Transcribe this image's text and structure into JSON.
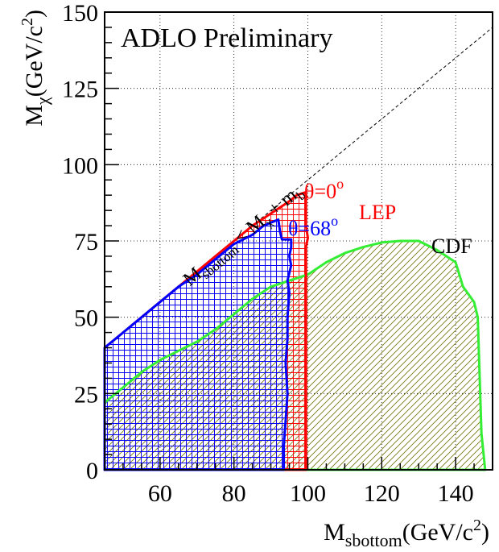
{
  "chart_data": {
    "type": "area",
    "title": "ADLO Preliminary",
    "xlabel": {
      "main": "M",
      "sub": "sbottom",
      "unit_open": "(GeV/c",
      "unit_sup": "2",
      "unit_close": ")"
    },
    "ylabel": {
      "main": "M",
      "sub": "χ",
      "unit_open": "(GeV/c",
      "unit_sup": "2",
      "unit_close": ")"
    },
    "xlim": [
      45,
      150
    ],
    "ylim": [
      0,
      150
    ],
    "x_ticks": [
      60,
      80,
      100,
      120,
      140
    ],
    "y_ticks": [
      0,
      25,
      50,
      75,
      100,
      125,
      150
    ],
    "grid": true,
    "kinematic_line": {
      "label": {
        "m1": "M",
        "s1": "sbottom",
        "lt": " < ",
        "m2": "M",
        "s2": "χ",
        "plus": " + m",
        "s3": "b"
      },
      "points": [
        [
          45,
          40
        ],
        [
          150,
          145
        ]
      ],
      "color": "#000000"
    },
    "series": [
      {
        "name": "CDF",
        "color": "#33ee33",
        "hatch_color": "#7a7a10",
        "hatch": "diagonal",
        "points": [
          [
            45,
            22
          ],
          [
            50,
            27
          ],
          [
            55,
            32
          ],
          [
            60,
            36
          ],
          [
            65,
            39
          ],
          [
            70,
            42
          ],
          [
            75,
            46
          ],
          [
            80,
            51
          ],
          [
            85,
            56
          ],
          [
            90,
            60
          ],
          [
            95,
            62
          ],
          [
            100,
            64
          ],
          [
            105,
            68
          ],
          [
            110,
            71
          ],
          [
            115,
            73
          ],
          [
            120,
            74.5
          ],
          [
            125,
            75
          ],
          [
            130,
            75
          ],
          [
            135,
            72
          ],
          [
            140,
            68
          ],
          [
            141,
            64
          ],
          [
            142,
            60
          ],
          [
            145,
            55
          ],
          [
            146,
            50
          ],
          [
            147,
            12
          ],
          [
            148,
            0
          ],
          [
            45,
            0
          ]
        ]
      },
      {
        "name": "LEP",
        "color": "#ff0000",
        "hatch": "grid",
        "annotation": {
          "theta": "θ=0",
          "sup": "o"
        },
        "points": [
          [
            45,
            40
          ],
          [
            50,
            45
          ],
          [
            55,
            50
          ],
          [
            60,
            55
          ],
          [
            65,
            60
          ],
          [
            70,
            65
          ],
          [
            75,
            70
          ],
          [
            80,
            75
          ],
          [
            85,
            80
          ],
          [
            90,
            84
          ],
          [
            95,
            88
          ],
          [
            97,
            90
          ],
          [
            99.5,
            91
          ],
          [
            99.5,
            80
          ],
          [
            100,
            76
          ],
          [
            99.5,
            73
          ],
          [
            99.5,
            0
          ],
          [
            45,
            0
          ]
        ]
      },
      {
        "name": "",
        "color": "#0000ff",
        "hatch": "grid",
        "annotation": {
          "theta": "θ=68",
          "sup": "o"
        },
        "points": [
          [
            45,
            40
          ],
          [
            50,
            45
          ],
          [
            55,
            50
          ],
          [
            60,
            55
          ],
          [
            65,
            60
          ],
          [
            70,
            64
          ],
          [
            75,
            69
          ],
          [
            80,
            74
          ],
          [
            85,
            77
          ],
          [
            88,
            80
          ],
          [
            92,
            82
          ],
          [
            92.5,
            78
          ],
          [
            93,
            75.5
          ],
          [
            95.5,
            75.5
          ],
          [
            95.5,
            73
          ],
          [
            95,
            70
          ],
          [
            95.5,
            67
          ],
          [
            94.5,
            62
          ],
          [
            95,
            58
          ],
          [
            94.5,
            50
          ],
          [
            94.5,
            43
          ],
          [
            94,
            35
          ],
          [
            94.5,
            25
          ],
          [
            94,
            16
          ],
          [
            93.5,
            8
          ],
          [
            93.5,
            0
          ],
          [
            45,
            0
          ]
        ]
      }
    ]
  }
}
